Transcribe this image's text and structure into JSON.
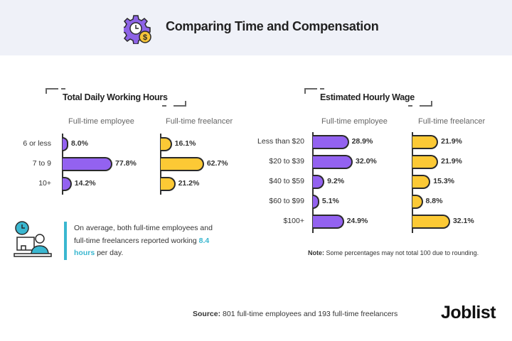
{
  "header": {
    "title": "Comparing Time and Compensation",
    "icon": "gear-clock-dollar-icon"
  },
  "colors": {
    "employee": "#9362f0",
    "freelancer": "#fcc935",
    "highlight": "#3ab7d0",
    "header_bg": "#eff1f8"
  },
  "chart_data": [
    {
      "type": "bar",
      "orientation": "horizontal",
      "title": "Total Daily Working Hours",
      "categories": [
        "6 or less",
        "7 to 9",
        "10+"
      ],
      "series": [
        {
          "name": "Full-time employee",
          "values": [
            8.0,
            77.8,
            14.2
          ],
          "labels": [
            "8.0%",
            "77.8%",
            "14.2%"
          ]
        },
        {
          "name": "Full-time freelancer",
          "values": [
            16.1,
            62.7,
            21.2
          ],
          "labels": [
            "16.1%",
            "62.7%",
            "21.2%"
          ]
        }
      ]
    },
    {
      "type": "bar",
      "orientation": "horizontal",
      "title": "Estimated Hourly Wage",
      "categories": [
        "Less than $20",
        "$20 to $39",
        "$40 to $59",
        "$60 to $99",
        "$100+"
      ],
      "series": [
        {
          "name": "Full-time employee",
          "values": [
            28.9,
            32.0,
            9.2,
            5.1,
            24.9
          ],
          "labels": [
            "28.9%",
            "32.0%",
            "9.2%",
            "5.1%",
            "24.9%"
          ]
        },
        {
          "name": "Full-time freelancer",
          "values": [
            21.9,
            21.9,
            15.3,
            8.8,
            32.1
          ],
          "labels": [
            "21.9%",
            "21.9%",
            "15.3%",
            "8.8%",
            "32.1%"
          ]
        }
      ]
    }
  ],
  "callout": {
    "text_before": "On average, both full-time employees and full-time freelancers reported working ",
    "highlight": "8.4 hours",
    "text_after": " per day.",
    "icon": "worker-at-desk-clock-icon"
  },
  "note": {
    "label": "Note:",
    "text": " Some percentages may not total 100 due to rounding."
  },
  "source": {
    "label": "Source:",
    "text": " 801 full-time employees and 193 full-time freelancers"
  },
  "logo": "Joblist"
}
